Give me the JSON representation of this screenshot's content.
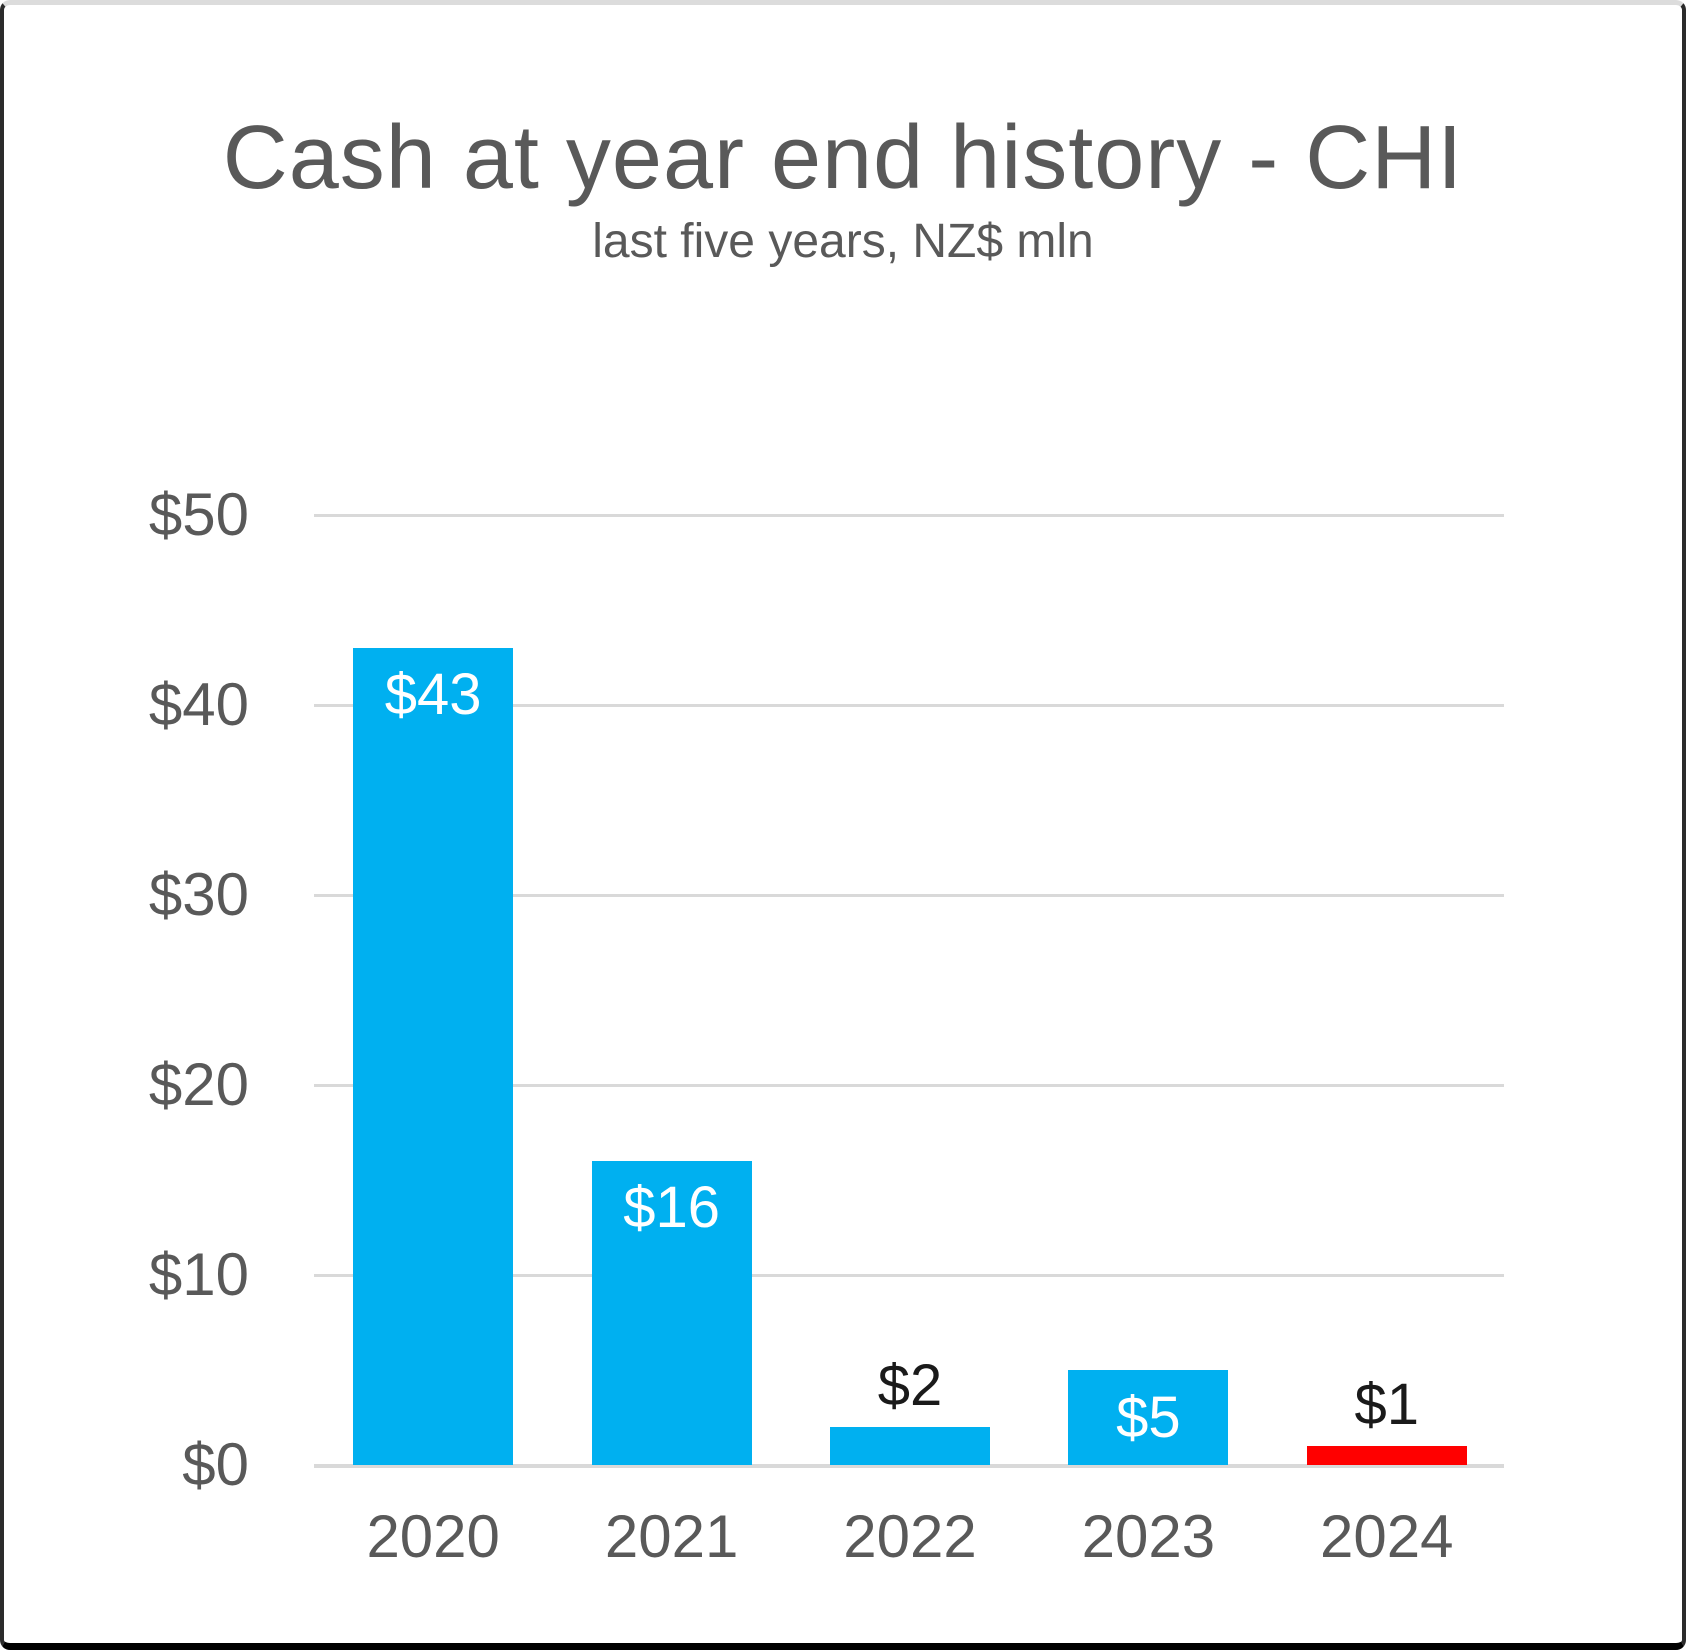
{
  "chart_data": {
    "type": "bar",
    "title": "Cash at year end history - CHI",
    "subtitle": "last five years, NZ$ mln",
    "categories": [
      "2020",
      "2021",
      "2022",
      "2023",
      "2024"
    ],
    "values": [
      43,
      16,
      2,
      5,
      1
    ],
    "bar_labels": [
      "$43",
      "$16",
      "$2",
      "$5",
      "$1"
    ],
    "bar_label_positions": [
      "inside",
      "inside",
      "outside",
      "inside",
      "outside"
    ],
    "bar_colors": [
      "#00B0F0",
      "#00B0F0",
      "#00B0F0",
      "#00B0F0",
      "#FF0000"
    ],
    "y_ticks": [
      {
        "label": "$50",
        "value": 50
      },
      {
        "label": "$40",
        "value": 40
      },
      {
        "label": "$30",
        "value": 30
      },
      {
        "label": "$20",
        "value": 20
      },
      {
        "label": "$10",
        "value": 10
      },
      {
        "label": "$0",
        "value": 0
      }
    ],
    "ylim": [
      0,
      50
    ],
    "xlabel": "",
    "ylabel": "",
    "grid": true,
    "legend": "none",
    "styles": {
      "bar_blue": "#00B0F0",
      "bar_red": "#FF0000",
      "grid_color": "#D9D9D9",
      "axis_text_color": "#595959",
      "title_color": "#595959",
      "inside_label_color": "#FFFFFF",
      "outside_label_color": "#1A1A1A"
    }
  }
}
